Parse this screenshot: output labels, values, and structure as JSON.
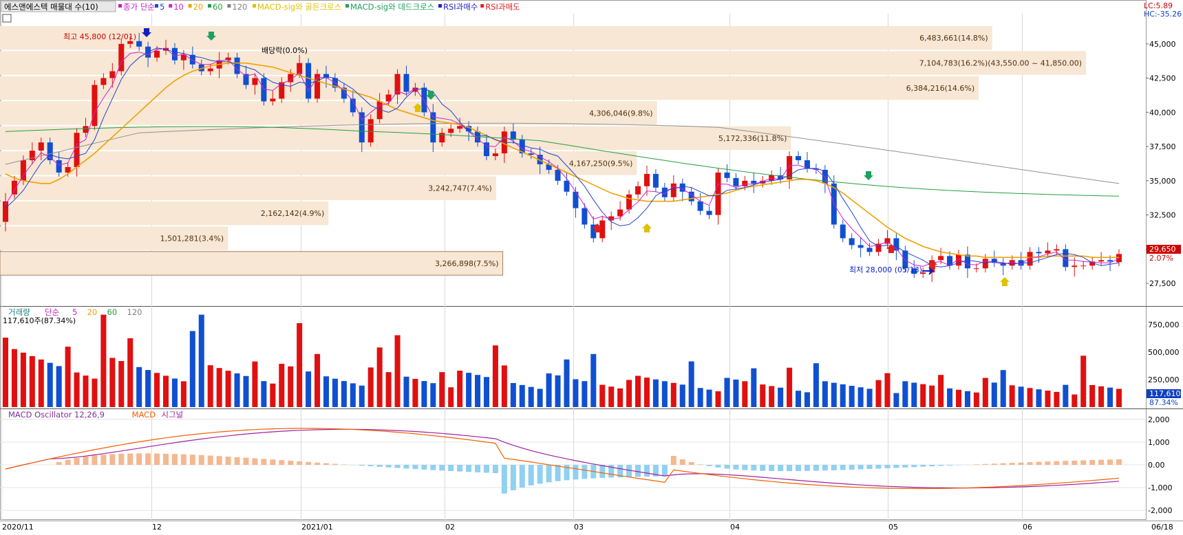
{
  "legend": {
    "stock_name": "에스앤에스텍 매물대 수(10)",
    "price_items": [
      {
        "text": "종가 단순",
        "color": "#c020c0"
      },
      {
        "text": "5",
        "color": "#2244cc"
      },
      {
        "text": "10",
        "color": "#d020d0"
      },
      {
        "text": "20",
        "color": "#f0a000"
      },
      {
        "text": "60",
        "color": "#20a040"
      },
      {
        "text": "120",
        "color": "#808080"
      },
      {
        "text": "MACD-sig와 골든크로스",
        "color": "#e0c000"
      },
      {
        "text": "MACD-sig와 데드크로스",
        "color": "#20a060"
      },
      {
        "text": "RSI과매수",
        "color": "#2020c0"
      },
      {
        "text": "RSI과매도",
        "color": "#e02020"
      }
    ],
    "volume_items": [
      {
        "text": "거래량",
        "color": "#208080"
      },
      {
        "text": "단순",
        "color": "#c020c0"
      },
      {
        "text": "5",
        "color": "#d020d0"
      },
      {
        "text": "20",
        "color": "#f0a000"
      },
      {
        "text": "60",
        "color": "#20a040"
      },
      {
        "text": "120",
        "color": "#808080"
      }
    ],
    "volume_readout": "117,610주(87.34%)",
    "macd_items": [
      {
        "text": "MACD Oscillator 12,26,9",
        "color": "#8030a0"
      },
      {
        "text": "MACD",
        "color": "#f06000"
      },
      {
        "text": "시그널",
        "color": "#a020a0"
      }
    ]
  },
  "corner": {
    "lc": "LC:5.89",
    "hc": "HC:-35.26"
  },
  "price_axis": [
    "45,000",
    "42,500",
    "40,000",
    "37,500",
    "35,000",
    "32,500",
    "30,000",
    "27,500"
  ],
  "price_tag": {
    "value": "29,650",
    "pct": "2.07%"
  },
  "volume_axis": [
    "750,000",
    "500,000",
    "250,000"
  ],
  "volume_tag": {
    "value": "117,610",
    "pct": "87.34%"
  },
  "macd_axis": [
    "2,000",
    "1,000",
    "0.00",
    "-1,000",
    "-2,000"
  ],
  "date_axis": [
    "2020/11",
    "12",
    "2021/01",
    "02",
    "03",
    "04",
    "05",
    "06",
    "06/18"
  ],
  "annotations": {
    "high": "최고 45,800 (12/01)",
    "low": "최저 28,000 (05/13)",
    "dividend": "배당락(0.0%)"
  },
  "volume_profile": [
    {
      "label": "6,483,661(14.8%)",
      "fraction": 0.148
    },
    {
      "label": "7,104,783(16.2%)(43,550.00 ~ 41,850.00)",
      "fraction": 0.162
    },
    {
      "label": "6,384,216(14.6%)",
      "fraction": 0.146
    },
    {
      "label": "4,306,046(9.8%)",
      "fraction": 0.098
    },
    {
      "label": "5,172,336(11.8%)",
      "fraction": 0.118
    },
    {
      "label": "4,167,250(9.5%)",
      "fraction": 0.095
    },
    {
      "label": "3,242,747(7.4%)",
      "fraction": 0.074
    },
    {
      "label": "2,162,142(4.9%)",
      "fraction": 0.049
    },
    {
      "label": "1,501,281(3.4%)",
      "fraction": 0.034
    },
    {
      "label": "3,266,898(7.5%)",
      "fraction": 0.075
    }
  ],
  "chart_data": {
    "type": "candlestick",
    "x_range": [
      "2020-11",
      "2021-06-18"
    ],
    "price_ylim": [
      26000,
      47000
    ],
    "price_series": {
      "high": 45800,
      "low": 28000,
      "last": 29650,
      "change_pct": 2.07,
      "closes": [
        33500,
        35000,
        36500,
        37200,
        37800,
        36500,
        35600,
        36000,
        38500,
        39000,
        42000,
        42500,
        43000,
        45000,
        45200,
        44800,
        44000,
        44500,
        44700,
        43800,
        44200,
        43500,
        43000,
        43200,
        43800,
        44000,
        42800,
        42000,
        42500,
        40800,
        41000,
        42200,
        42800,
        43600,
        41000,
        42800,
        42500,
        41800,
        41000,
        40000,
        37800,
        39500,
        40800,
        41300,
        42800,
        41500,
        41800,
        40000,
        37800,
        38500,
        38800,
        39000,
        38600,
        37800,
        36800,
        37000,
        38600,
        38000,
        37000,
        36900,
        36200,
        35800,
        35000,
        34200,
        33000,
        31800,
        30800,
        32100,
        32400,
        32900,
        34000,
        34600,
        35500,
        34500,
        33800,
        34800,
        34200,
        33500,
        32800,
        32500,
        35600,
        35200,
        34600,
        35000,
        34800,
        35000,
        35400,
        35100,
        36800,
        36500,
        35900,
        35800,
        34800,
        31800,
        30800,
        30300,
        30100,
        29800,
        30400,
        30800,
        29900,
        28600,
        28200,
        28300,
        29200,
        29500,
        28800,
        29600,
        28600,
        28600,
        29300,
        29000,
        28800,
        29200,
        28800,
        29800,
        29700,
        29900,
        30000,
        28700,
        28800,
        28800,
        29100,
        29200,
        29100,
        29650
      ],
      "opens": [
        32000,
        34000,
        35000,
        36500,
        37200,
        37800,
        36500,
        35600,
        36000,
        38500,
        39000,
        42000,
        42500,
        43000,
        45000,
        45200,
        44800,
        44000,
        44500,
        44700,
        43800,
        44200,
        43500,
        43000,
        43200,
        43800,
        44000,
        42800,
        42000,
        42500,
        40800,
        41000,
        42200,
        42800,
        43600,
        41000,
        42800,
        42500,
        41800,
        41000,
        40000,
        37800,
        39500,
        40800,
        41300,
        42800,
        41500,
        41800,
        40000,
        37800,
        38500,
        38800,
        39000,
        38600,
        37800,
        36800,
        37000,
        38600,
        38000,
        37000,
        36900,
        36200,
        35800,
        35000,
        34200,
        33000,
        31800,
        30800,
        32100,
        32400,
        32900,
        34000,
        34600,
        35500,
        34500,
        33800,
        34800,
        34200,
        33500,
        32800,
        32500,
        35600,
        35200,
        34600,
        35000,
        34800,
        35000,
        35400,
        35100,
        36800,
        36500,
        35900,
        35800,
        34800,
        31800,
        30800,
        30300,
        30100,
        29800,
        30400,
        30800,
        29900,
        28600,
        28200,
        28300,
        29200,
        29500,
        28800,
        29600,
        28600,
        28600,
        29300,
        29000,
        28800,
        29200,
        28800,
        29800,
        29700,
        29900,
        30000,
        28700,
        28800,
        28800,
        29100,
        29200,
        29050
      ]
    },
    "moving_averages": {
      "ma5": [
        33000,
        33600,
        34300,
        35300,
        36300,
        36900,
        36700,
        36600,
        36800,
        37000,
        38000,
        39600,
        41000,
        42400,
        43400,
        44000,
        44400,
        44700,
        44600,
        44400,
        44300,
        44100,
        44000,
        43800,
        43700,
        43700,
        43500,
        43300,
        43100,
        42600,
        42200,
        42000,
        41900,
        42200,
        42100,
        42300,
        42600,
        42500,
        42100,
        41700,
        41100,
        40500,
        40200,
        40000,
        40300,
        41100,
        41700,
        41700,
        41500,
        40600,
        40100,
        39300,
        38600,
        38300,
        38300,
        38000,
        37800,
        37800,
        37600,
        37400,
        37300,
        37000,
        36800,
        36100,
        35400,
        34600,
        33600,
        32700,
        32000,
        31700,
        31800,
        32300,
        33000,
        33900,
        34300,
        34400,
        34600,
        34500,
        34200,
        33900,
        33900,
        34300,
        34400,
        34500,
        34700,
        34900,
        35000,
        35100,
        35400,
        35800,
        35900,
        35900,
        35700,
        34800,
        33700,
        32700,
        31600,
        30600,
        30200,
        30300,
        30200,
        29800,
        29500,
        29200,
        28800,
        28700,
        28800,
        29000,
        29200,
        29100,
        29000,
        29100,
        29000,
        28900,
        29000,
        29000,
        29200,
        29400,
        29600,
        29700,
        29600,
        29400,
        29000,
        28800,
        28900,
        29000
      ],
      "ma20": [
        35500,
        35200,
        35000,
        34900,
        34800,
        34800,
        35100,
        35500,
        36000,
        36500,
        37000,
        37600,
        38200,
        38800,
        39400,
        40000,
        40600,
        41200,
        41800,
        42300,
        42700,
        43000,
        43200,
        43400,
        43500,
        43600,
        43600,
        43600,
        43500,
        43400,
        43300,
        43100,
        42900,
        42700,
        42500,
        42300,
        42100,
        41900,
        41700,
        41500,
        41300,
        41100,
        40800,
        40500,
        40200,
        40000,
        39800,
        39600,
        39400,
        39300,
        39200,
        39100,
        38900,
        38600,
        38300,
        38000,
        37700,
        37400,
        37100,
        36800,
        36500,
        36200,
        35900,
        35600,
        35300,
        35000,
        34700,
        34400,
        34100,
        33900,
        33700,
        33600,
        33500,
        33500,
        33500,
        33500,
        33600,
        33700,
        33800,
        33900,
        34000,
        34100,
        34300,
        34500,
        34600,
        34700,
        34800,
        34900,
        35000,
        35100,
        35100,
        35000,
        34800,
        34500,
        34100,
        33600,
        33100,
        32600,
        32100,
        31600,
        31200,
        30800,
        30500,
        30200,
        30000,
        29800,
        29700,
        29600,
        29500,
        29500,
        29400,
        29400,
        29400,
        29400,
        29400,
        29400,
        29400,
        29500,
        29500,
        29500,
        29500,
        29500,
        29400,
        29400,
        29400,
        29400
      ]
    },
    "volume_ylim": [
      0,
      900000
    ],
    "volume_last": 117610,
    "macd_ylim": [
      -2200,
      2200
    ]
  }
}
